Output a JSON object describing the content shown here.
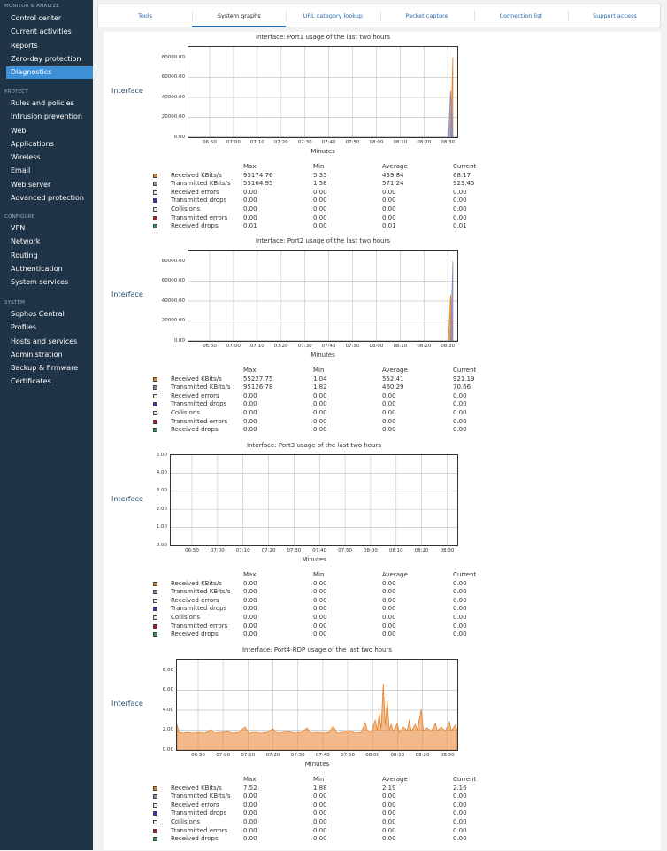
{
  "sidebar": {
    "sections": [
      {
        "title": "MONITOR & ANALYZE",
        "items": [
          "Control center",
          "Current activities",
          "Reports",
          "Zero-day protection",
          "Diagnostics"
        ]
      },
      {
        "title": "PROTECT",
        "items": [
          "Rules and policies",
          "Intrusion prevention",
          "Web",
          "Applications",
          "Wireless",
          "Email",
          "Web server",
          "Advanced protection"
        ]
      },
      {
        "title": "CONFIGURE",
        "items": [
          "VPN",
          "Network",
          "Routing",
          "Authentication",
          "System services"
        ]
      },
      {
        "title": "SYSTEM",
        "items": [
          "Sophos Central",
          "Profiles",
          "Hosts and services",
          "Administration",
          "Backup & firmware",
          "Certificates"
        ]
      }
    ],
    "active_item": "Diagnostics"
  },
  "tabs": [
    "Tools",
    "System graphs",
    "URL category lookup",
    "Packet capture",
    "Connection list",
    "Support access"
  ],
  "active_tab": "System graphs",
  "stats_headers": [
    "Max",
    "Min",
    "Average",
    "Current"
  ],
  "stat_labels": [
    "Received KBits/s",
    "Transmitted KBits/s",
    "Received errors",
    "Transmitted drops",
    "Collisions",
    "Transmitted errors",
    "Received drops"
  ],
  "stat_colors": [
    "#e8812a",
    "#8a8ab8",
    "#f0f0c8",
    "#3030c0",
    "#f0e0f0",
    "#b01818",
    "#20a040"
  ],
  "interface_label": "Interface",
  "x_axis_label": "Minutes",
  "graphs": [
    {
      "title": "Interface: Port1 usage of the last two hours",
      "y_ticks": [
        "80000.00",
        "60000.00",
        "40000.00",
        "20000.00",
        "0.00"
      ],
      "x_ticks": [
        "06:50",
        "07:00",
        "07:10",
        "07:20",
        "07:30",
        "07:40",
        "07:50",
        "08:00",
        "08:10",
        "08:20",
        "08:30"
      ],
      "stats": [
        [
          "95174.76",
          "5.35",
          "439.84",
          "68.17"
        ],
        [
          "55164.95",
          "1.58",
          "571.24",
          "923.45"
        ],
        [
          "0.00",
          "0.00",
          "0.00",
          "0.00"
        ],
        [
          "0.00",
          "0.00",
          "0.00",
          "0.00"
        ],
        [
          "0.00",
          "0.00",
          "0.00",
          "0.00"
        ],
        [
          "0.00",
          "0.00",
          "0.00",
          "0.00"
        ],
        [
          "0.01",
          "0.00",
          "0.01",
          "0.01"
        ]
      ]
    },
    {
      "title": "Interface: Port2 usage of the last two hours",
      "y_ticks": [
        "80000.00",
        "60000.00",
        "40000.00",
        "20000.00",
        "0.00"
      ],
      "x_ticks": [
        "06:50",
        "07:00",
        "07:10",
        "07:20",
        "07:30",
        "07:40",
        "07:50",
        "08:00",
        "08:10",
        "08:20",
        "08:30"
      ],
      "stats": [
        [
          "55227.75",
          "1.04",
          "552.41",
          "921.19"
        ],
        [
          "95126.78",
          "1.82",
          "460.29",
          "70.66"
        ],
        [
          "0.00",
          "0.00",
          "0.00",
          "0.00"
        ],
        [
          "0.00",
          "0.00",
          "0.00",
          "0.00"
        ],
        [
          "0.00",
          "0.00",
          "0.00",
          "0.00"
        ],
        [
          "0.00",
          "0.00",
          "0.00",
          "0.00"
        ],
        [
          "0.00",
          "0.00",
          "0.00",
          "0.00"
        ]
      ]
    },
    {
      "title": "Interface: Port3 usage of the last two hours",
      "y_ticks": [
        "5.00",
        "4.00",
        "3.00",
        "2.00",
        "1.00",
        "0.00"
      ],
      "x_ticks": [
        "06:50",
        "07:00",
        "07:10",
        "07:20",
        "07:30",
        "07:40",
        "07:50",
        "08:00",
        "08:10",
        "08:20",
        "08:30"
      ],
      "stats": [
        [
          "0.00",
          "0.00",
          "0.00",
          "0.00"
        ],
        [
          "0.00",
          "0.00",
          "0.00",
          "0.00"
        ],
        [
          "0.00",
          "0.00",
          "0.00",
          "0.00"
        ],
        [
          "0.00",
          "0.00",
          "0.00",
          "0.00"
        ],
        [
          "0.00",
          "0.00",
          "0.00",
          "0.00"
        ],
        [
          "0.00",
          "0.00",
          "0.00",
          "0.00"
        ],
        [
          "0.00",
          "0.00",
          "0.00",
          "0.00"
        ]
      ]
    },
    {
      "title": "Interface: Port4-RDP usage of the last two hours",
      "y_ticks": [
        "8.00",
        "6.00",
        "4.00",
        "2.00",
        "0.00"
      ],
      "x_ticks": [
        "06:30",
        "07:00",
        "07:10",
        "07:20",
        "07:30",
        "07:40",
        "07:50",
        "08:00",
        "08:10",
        "08:20",
        "08:30"
      ],
      "stats": [
        [
          "7.52",
          "1.88",
          "2.19",
          "2.16"
        ],
        [
          "0.00",
          "0.00",
          "0.00",
          "0.00"
        ],
        [
          "0.00",
          "0.00",
          "0.00",
          "0.00"
        ],
        [
          "0.00",
          "0.00",
          "0.00",
          "0.00"
        ],
        [
          "0.00",
          "0.00",
          "0.00",
          "0.00"
        ],
        [
          "0.00",
          "0.00",
          "0.00",
          "0.00"
        ],
        [
          "0.00",
          "0.00",
          "0.00",
          "0.00"
        ]
      ]
    }
  ],
  "chart_data": [
    {
      "type": "area",
      "title": "Interface: Port1 usage of the last two hours",
      "xlabel": "Minutes",
      "ylabel": "Interface",
      "ylim": [
        0,
        95174.76
      ],
      "x_domain": [
        "06:40",
        "08:40"
      ],
      "series": [
        {
          "name": "Received KBits/s",
          "points": [
            [
              "06:40",
              0
            ],
            [
              "08:37",
              0
            ],
            [
              "08:38",
              95174.76
            ],
            [
              "08:38",
              0
            ],
            [
              "08:40",
              0
            ]
          ]
        },
        {
          "name": "Transmitted KBits/s",
          "points": [
            [
              "06:40",
              0
            ],
            [
              "08:36",
              0
            ],
            [
              "08:37",
              55164.95
            ],
            [
              "08:38",
              0
            ],
            [
              "08:40",
              0
            ]
          ]
        }
      ]
    },
    {
      "type": "area",
      "title": "Interface: Port2 usage of the last two hours",
      "xlabel": "Minutes",
      "ylabel": "Interface",
      "ylim": [
        0,
        95126.78
      ],
      "x_domain": [
        "06:40",
        "08:40"
      ],
      "series": [
        {
          "name": "Received KBits/s",
          "points": [
            [
              "06:40",
              0
            ],
            [
              "08:36",
              0
            ],
            [
              "08:37",
              55227.75
            ],
            [
              "08:38",
              0
            ],
            [
              "08:40",
              0
            ]
          ]
        },
        {
          "name": "Transmitted KBits/s",
          "points": [
            [
              "06:40",
              0
            ],
            [
              "08:37",
              0
            ],
            [
              "08:38",
              95126.78
            ],
            [
              "08:38",
              0
            ],
            [
              "08:40",
              0
            ]
          ]
        }
      ]
    },
    {
      "type": "area",
      "title": "Interface: Port3 usage of the last two hours",
      "xlabel": "Minutes",
      "ylabel": "Interface",
      "ylim": [
        0,
        5
      ],
      "x_domain": [
        "06:40",
        "08:40"
      ],
      "series": [
        {
          "name": "Received KBits/s",
          "points": [
            [
              "06:40",
              0
            ],
            [
              "08:40",
              0
            ]
          ]
        }
      ]
    },
    {
      "type": "area",
      "title": "Interface: Port4-RDP usage of the last two hours",
      "xlabel": "Minutes",
      "ylabel": "Interface",
      "ylim": [
        0,
        9
      ],
      "x_domain": [
        "06:20",
        "08:40"
      ],
      "series": [
        {
          "name": "Received KBits/s",
          "points": [
            [
              "06:20",
              2.9
            ],
            [
              "06:21",
              2.0
            ],
            [
              "06:23",
              1.9
            ],
            [
              "06:25",
              2.0
            ],
            [
              "06:28",
              1.9
            ],
            [
              "06:31",
              2.0
            ],
            [
              "06:34",
              1.9
            ],
            [
              "06:37",
              2.3
            ],
            [
              "06:39",
              1.9
            ],
            [
              "06:42",
              2.0
            ],
            [
              "06:45",
              2.1
            ],
            [
              "06:48",
              1.9
            ],
            [
              "06:51",
              2.0
            ],
            [
              "06:54",
              2.6
            ],
            [
              "06:56",
              1.9
            ],
            [
              "06:59",
              2.0
            ],
            [
              "07:02",
              1.9
            ],
            [
              "07:05",
              2.0
            ],
            [
              "07:08",
              2.4
            ],
            [
              "07:10",
              1.9
            ],
            [
              "07:13",
              2.0
            ],
            [
              "07:16",
              2.1
            ],
            [
              "07:19",
              1.9
            ],
            [
              "07:22",
              2.0
            ],
            [
              "07:25",
              2.5
            ],
            [
              "07:27",
              1.9
            ],
            [
              "07:30",
              2.0
            ],
            [
              "07:33",
              1.9
            ],
            [
              "07:36",
              2.0
            ],
            [
              "07:38",
              2.7
            ],
            [
              "07:40",
              1.9
            ],
            [
              "07:43",
              2.0
            ],
            [
              "07:46",
              2.2
            ],
            [
              "07:49",
              1.9
            ],
            [
              "07:52",
              2.0
            ],
            [
              "07:54",
              3.1
            ],
            [
              "07:55",
              2.2
            ],
            [
              "07:57",
              2.0
            ],
            [
              "07:59",
              3.4
            ],
            [
              "08:00",
              2.2
            ],
            [
              "08:01",
              4.2
            ],
            [
              "08:02",
              2.4
            ],
            [
              "08:03",
              7.52
            ],
            [
              "08:04",
              2.8
            ],
            [
              "08:05",
              5.6
            ],
            [
              "08:06",
              2.3
            ],
            [
              "08:07",
              2.9
            ],
            [
              "08:08",
              2.1
            ],
            [
              "08:10",
              3.0
            ],
            [
              "08:11",
              2.0
            ],
            [
              "08:13",
              2.6
            ],
            [
              "08:15",
              2.2
            ],
            [
              "08:16",
              3.4
            ],
            [
              "08:17",
              2.1
            ],
            [
              "08:19",
              2.9
            ],
            [
              "08:20",
              2.3
            ],
            [
              "08:22",
              4.6
            ],
            [
              "08:23",
              2.2
            ],
            [
              "08:25",
              2.5
            ],
            [
              "08:27",
              2.1
            ],
            [
              "08:29",
              3.0
            ],
            [
              "08:30",
              2.2
            ],
            [
              "08:32",
              2.6
            ],
            [
              "08:34",
              2.1
            ],
            [
              "08:36",
              3.2
            ],
            [
              "08:37",
              2.2
            ],
            [
              "08:39",
              2.8
            ],
            [
              "08:40",
              2.2
            ]
          ]
        }
      ]
    }
  ]
}
